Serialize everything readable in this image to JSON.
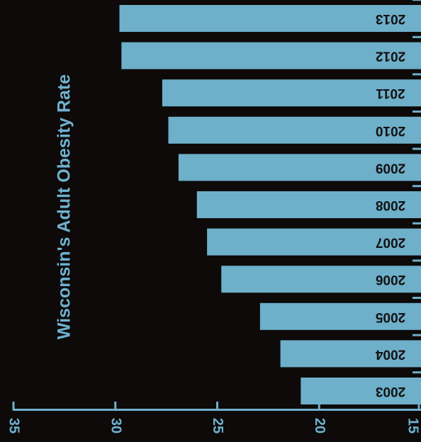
{
  "chart_data": {
    "type": "bar",
    "orientation": "horizontal",
    "title": "Wisconsin's Adult Obesity Rate",
    "categories": [
      "2003",
      "2004",
      "2005",
      "2006",
      "2007",
      "2008",
      "2009",
      "2010",
      "2011",
      "2012",
      "2013"
    ],
    "values": [
      20.9,
      21.9,
      22.9,
      24.8,
      25.5,
      26.0,
      26.9,
      27.4,
      27.7,
      29.7,
      29.8
    ],
    "axis_range": [
      15,
      35
    ],
    "ticks": [
      "15",
      "20",
      "25",
      "30",
      "35"
    ],
    "colors": {
      "bar": "#6eafca",
      "background": "#0d0a09",
      "text": "#6fb1cf"
    }
  }
}
